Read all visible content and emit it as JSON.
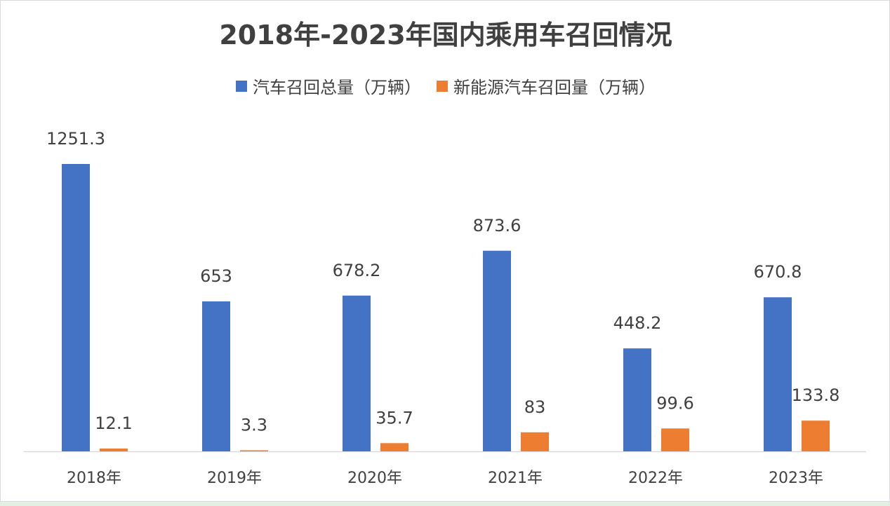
{
  "chart_data": {
    "type": "bar",
    "title": "2018年-2023年国内乘用车召回情况",
    "categories": [
      "2018年",
      "2019年",
      "2020年",
      "2021年",
      "2022年",
      "2023年"
    ],
    "series": [
      {
        "name": "汽车召回总量（万辆）",
        "color": "#4472c4",
        "values": [
          1251.3,
          653,
          678.2,
          873.6,
          448.2,
          670.8
        ]
      },
      {
        "name": "新能源汽车召回量（万辆）",
        "color": "#ed7d31",
        "values": [
          12.1,
          3.3,
          35.7,
          83,
          99.6,
          133.8
        ]
      }
    ],
    "ylim": [
      0,
      1251.3
    ],
    "grid": false,
    "legend_position": "top"
  }
}
